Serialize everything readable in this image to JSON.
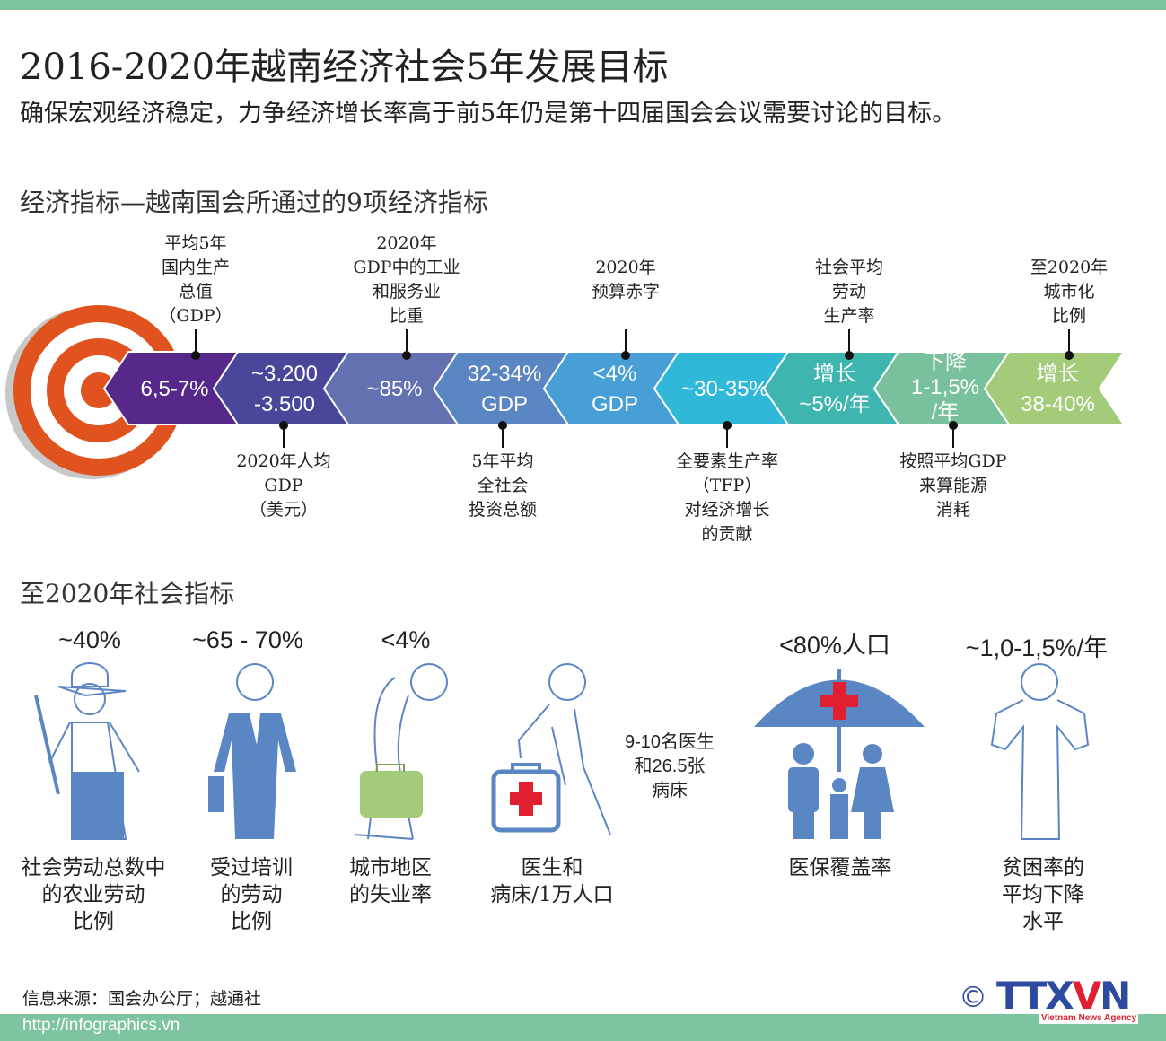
{
  "header": {
    "title": "2016-2020年越南经济社会5年发展目标",
    "subtitle": "确保宏观经济稳定，力争经济增长率高于前5年仍是第十四届国会会议需要讨论的目标。"
  },
  "economic": {
    "heading": "经济指标—越南国会所通过的9项经济指标",
    "segments": [
      {
        "value": "6,5-7%",
        "color": "#56288a"
      },
      {
        "value": "~3.200\n-3.500",
        "color": "#4a479a"
      },
      {
        "value": "~85%",
        "color": "#6471b0"
      },
      {
        "value": "32-34%\nGDP",
        "color": "#5b86c4"
      },
      {
        "value": "<4%\nGDP",
        "color": "#479fd6"
      },
      {
        "value": "~30-35%",
        "color": "#30b8d8"
      },
      {
        "value": "增长\n~5%/年",
        "color": "#3fb5b0"
      },
      {
        "value": "下降\n1-1,5%\n/年",
        "color": "#78c19c"
      },
      {
        "value": "增长\n38-40%",
        "color": "#a4cb7a"
      }
    ],
    "labels": [
      "平均5年\n国内生产\n总值\n（GDP）",
      "2020年人均\nGDP\n（美元）",
      "2020年\nGDP中的工业\n和服务业\n比重",
      "5年平均\n全社会\n投资总额",
      "2020年\n预算赤字",
      "全要素生产率\n（TFP）\n对经济增长\n的贡献",
      "社会平均\n劳动\n生产率",
      "按照平均GDP\n来算能源\n消耗",
      "至2020年\n城市化\n比例"
    ],
    "target_color": "#e0531f"
  },
  "social": {
    "heading": "至2020年社会指标",
    "items": [
      {
        "value": "~40%",
        "caption": "社会劳动总数中\n的农业劳动\n比例",
        "icon": "farmer-icon"
      },
      {
        "value": "~65 - 70%",
        "caption": "受过培训\n的劳动\n比例",
        "icon": "trained-worker-icon"
      },
      {
        "value": "<4%",
        "caption": "城市地区\n的失业率",
        "icon": "unemployed-person-icon"
      },
      {
        "value": "9-10名医生\n和26.5张\n病床",
        "caption": "医生和\n病床/1万人口",
        "icon": "doctor-medical-bag-icon"
      },
      {
        "value": "<80%人口",
        "caption": "医保覆盖率",
        "icon": "family-umbrella-icon"
      },
      {
        "value": "~1,0-1,5%/年",
        "caption": "贫困率的\n平均下降\n水平",
        "icon": "poor-person-icon"
      }
    ],
    "icon_color": "#5b86c4"
  },
  "footer": {
    "source": "信息来源：国会办公厅；越通社",
    "url": "http://infographics.vn",
    "logo": "TTXVN",
    "logo_tag": "Vietnam News Agency",
    "copyright": "©"
  }
}
